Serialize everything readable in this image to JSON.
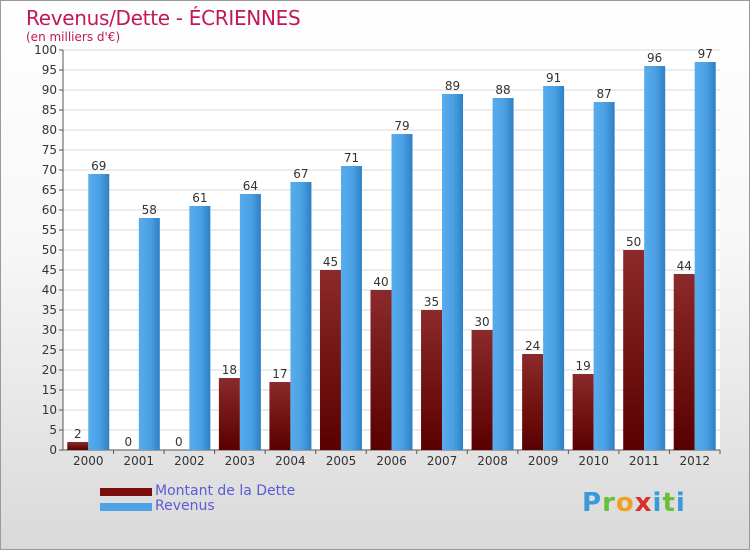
{
  "chart_data": {
    "type": "bar",
    "title": "Revenus/Dette - ÉCRIENNES",
    "subtitle": "(en milliers d'€)",
    "categories": [
      "2000",
      "2001",
      "2002",
      "2003",
      "2004",
      "2005",
      "2006",
      "2007",
      "2008",
      "2009",
      "2010",
      "2011",
      "2012"
    ],
    "series": [
      {
        "name": "Montant de la Dette",
        "color": "#7a0c0c",
        "values": [
          2,
          0,
          0,
          18,
          17,
          45,
          40,
          35,
          30,
          24,
          19,
          50,
          44
        ]
      },
      {
        "name": "Revenus",
        "color": "#4da3e6",
        "values": [
          69,
          58,
          61,
          64,
          67,
          71,
          79,
          89,
          88,
          91,
          87,
          96,
          97
        ]
      }
    ],
    "ylim": [
      0,
      100
    ],
    "ytick_step": 5,
    "grid": true,
    "legend": "bottom-left"
  },
  "brand": {
    "text": "Proxiti"
  }
}
